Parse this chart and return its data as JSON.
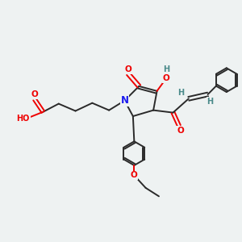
{
  "background_color": "#eef2f2",
  "bond_color": "#2a2a2a",
  "oxygen_color": "#ee0000",
  "nitrogen_color": "#1a1aee",
  "hydrogen_color": "#4a8a8a",
  "figsize": [
    3.0,
    3.0
  ],
  "dpi": 100,
  "xlim": [
    0,
    10
  ],
  "ylim": [
    0,
    10
  ]
}
